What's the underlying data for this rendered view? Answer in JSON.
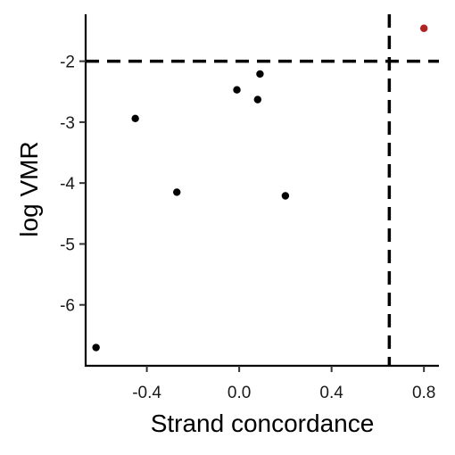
{
  "chart_data": {
    "type": "scatter",
    "xlabel": "Strand concordance",
    "ylabel": "log VMR",
    "xlim": [
      -0.665,
      0.865
    ],
    "ylim": [
      -7.0,
      -1.2
    ],
    "x_ticks": [
      -0.4,
      0.0,
      0.4,
      0.8
    ],
    "x_tick_labels": [
      "-0.4",
      "0.0",
      "0.4",
      "0.8"
    ],
    "y_ticks": [
      -2,
      -3,
      -4,
      -5,
      -6
    ],
    "y_tick_labels": [
      "-2",
      "-3",
      "-4",
      "-5",
      "-6"
    ],
    "grid": false,
    "reference_lines": {
      "horizontal_dashed_y": -2.0,
      "vertical_dashed_x": 0.65
    },
    "points": [
      {
        "x": -0.62,
        "y": -6.7,
        "color": "#000000"
      },
      {
        "x": -0.45,
        "y": -2.94,
        "color": "#000000"
      },
      {
        "x": -0.27,
        "y": -4.15,
        "color": "#000000"
      },
      {
        "x": -0.01,
        "y": -2.47,
        "color": "#000000"
      },
      {
        "x": 0.08,
        "y": -2.63,
        "color": "#000000"
      },
      {
        "x": 0.09,
        "y": -2.21,
        "color": "#000000"
      },
      {
        "x": 0.2,
        "y": -4.21,
        "color": "#000000"
      },
      {
        "x": 0.8,
        "y": -1.46,
        "color": "#b22222"
      }
    ]
  }
}
